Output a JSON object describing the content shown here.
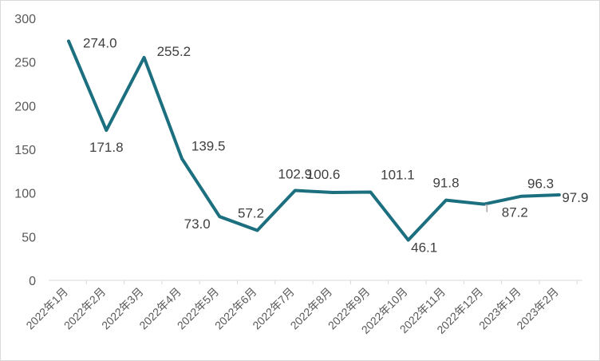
{
  "chart_data": {
    "type": "line",
    "title": "",
    "xlabel": "",
    "ylabel": "",
    "categories": [
      "2022年1月",
      "2022年2月",
      "2022年3月",
      "2022年4月",
      "2022年5月",
      "2022年6月",
      "2022年7月",
      "2022年8月",
      "2022年9月",
      "2022年10月",
      "2022年11月",
      "2022年12月",
      "2023年1月",
      "2023年2月"
    ],
    "values": [
      274.0,
      171.8,
      255.2,
      139.5,
      73.0,
      57.2,
      102.9,
      100.6,
      101.1,
      46.1,
      91.8,
      87.2,
      96.3,
      97.9
    ],
    "data_labels": [
      "274.0",
      "171.8",
      "255.2",
      "139.5",
      "73.0",
      "57.2",
      "102.9",
      "100.6",
      "101.1",
      "46.1",
      "91.8",
      "87.2",
      "96.3",
      "97.9"
    ],
    "y_ticks": [
      "0",
      "50",
      "100",
      "150",
      "200",
      "250",
      "300"
    ],
    "ylim": [
      0,
      300
    ],
    "grid": false,
    "legend": "none",
    "line_color": "#1b6f7f"
  }
}
